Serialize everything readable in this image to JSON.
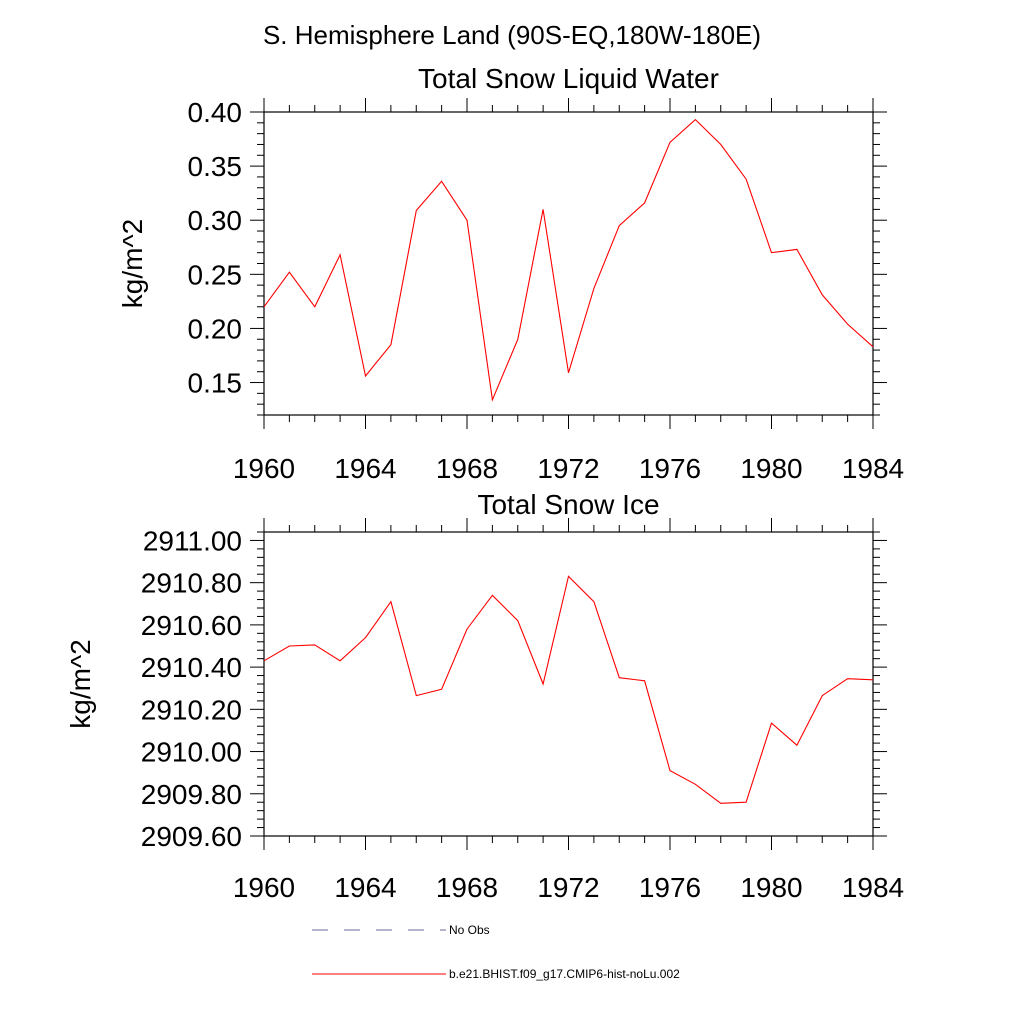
{
  "page_title": "S. Hemisphere Land (90S-EQ,180W-180E)",
  "colors": {
    "series": "#ff0000",
    "no_obs": "#6a6a9a",
    "axis": "#000000"
  },
  "chart_data": [
    {
      "type": "line",
      "title": "Total Snow Liquid Water",
      "xlabel": "",
      "ylabel": "kg/m^2",
      "xlim": [
        1960,
        1984
      ],
      "ylim": [
        0.12,
        0.4
      ],
      "x_ticks": [
        "1960",
        "1964",
        "1968",
        "1972",
        "1976",
        "1980",
        "1984"
      ],
      "y_ticks": [
        "0.15",
        "0.20",
        "0.25",
        "0.30",
        "0.35",
        "0.40"
      ],
      "grid": false,
      "series": [
        {
          "name": "b.e21.BHIST.f09_g17.CMIP6-hist-noLu.002",
          "x": [
            1960,
            1961,
            1962,
            1963,
            1964,
            1965,
            1966,
            1967,
            1968,
            1969,
            1970,
            1971,
            1972,
            1973,
            1974,
            1975,
            1976,
            1977,
            1978,
            1979,
            1980,
            1981,
            1982,
            1983,
            1984
          ],
          "values": [
            0.22,
            0.252,
            0.22,
            0.268,
            0.156,
            0.185,
            0.309,
            0.336,
            0.3,
            0.134,
            0.19,
            0.31,
            0.159,
            0.237,
            0.295,
            0.316,
            0.372,
            0.393,
            0.37,
            0.338,
            0.27,
            0.273,
            0.231,
            0.204,
            0.183
          ]
        }
      ]
    },
    {
      "type": "line",
      "title": "Total Snow Ice",
      "xlabel": "",
      "ylabel": "kg/m^2",
      "xlim": [
        1960,
        1984
      ],
      "ylim": [
        2909.6,
        2911.04
      ],
      "x_ticks": [
        "1960",
        "1964",
        "1968",
        "1972",
        "1976",
        "1980",
        "1984"
      ],
      "y_ticks": [
        "2909.60",
        "2909.80",
        "2910.00",
        "2910.20",
        "2910.40",
        "2910.60",
        "2910.80",
        "2911.00"
      ],
      "grid": false,
      "series": [
        {
          "name": "b.e21.BHIST.f09_g17.CMIP6-hist-noLu.002",
          "x": [
            1960,
            1961,
            1962,
            1963,
            1964,
            1965,
            1966,
            1967,
            1968,
            1969,
            1970,
            1971,
            1972,
            1973,
            1974,
            1975,
            1976,
            1977,
            1978,
            1979,
            1980,
            1981,
            1982,
            1983,
            1984
          ],
          "values": [
            2910.43,
            2910.5,
            2910.505,
            2910.43,
            2910.54,
            2910.71,
            2910.265,
            2910.295,
            2910.58,
            2910.74,
            2910.62,
            2910.32,
            2910.83,
            2910.71,
            2910.35,
            2910.335,
            2909.91,
            2909.845,
            2909.755,
            2909.76,
            2910.135,
            2910.03,
            2910.265,
            2910.345,
            2910.34
          ]
        }
      ]
    }
  ],
  "legend": {
    "items": [
      {
        "label": "No Obs",
        "style": "dashed"
      },
      {
        "label": "b.e21.BHIST.f09_g17.CMIP6-hist-noLu.002",
        "style": "solid"
      }
    ]
  }
}
